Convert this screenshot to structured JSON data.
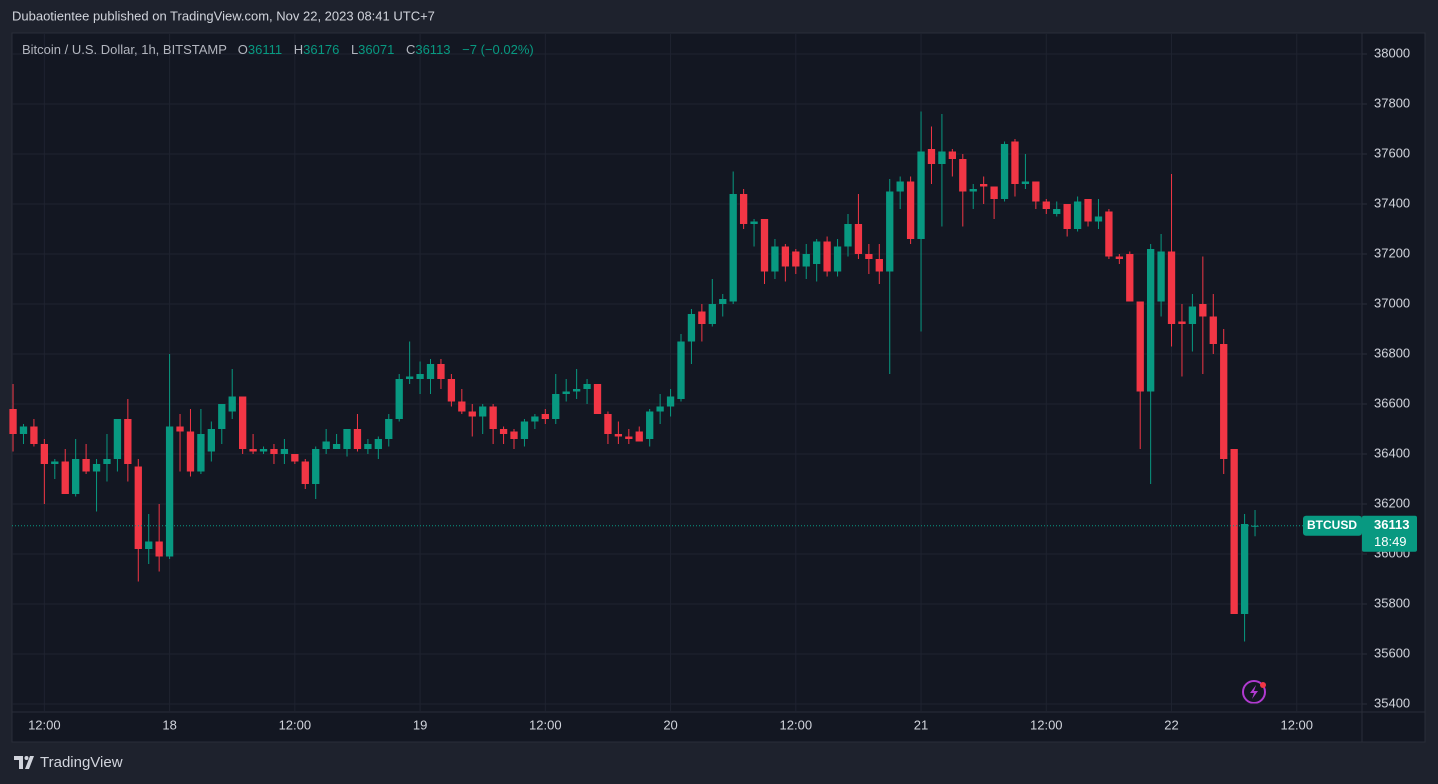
{
  "header": {
    "published": "Dubaotientee published on TradingView.com, Nov 22, 2023 08:41 UTC+7"
  },
  "footer": {
    "brand": "TradingView"
  },
  "chart_data": {
    "type": "candlestick",
    "title": "Bitcoin / U.S. Dollar, 1h, BITSTAMP",
    "ohlc_labels": [
      "O",
      "H",
      "L",
      "C"
    ],
    "change": "−7 (−0.02%)",
    "symbol": "BTCUSD",
    "countdown": "18:49",
    "up_color": "#089981",
    "down_color": "#f23645",
    "grid": true,
    "ylim": [
      35368,
      38080
    ],
    "yticks": [
      35400,
      35600,
      35800,
      36000,
      36200,
      36400,
      36600,
      36800,
      37000,
      37200,
      37400,
      37600,
      37800,
      38000
    ],
    "xlim": [
      -0.1,
      129.25
    ],
    "xticks": [
      {
        "value": 3,
        "label": "12:00"
      },
      {
        "value": 15,
        "label": "18"
      },
      {
        "value": 27,
        "label": "12:00"
      },
      {
        "value": 39,
        "label": "19"
      },
      {
        "value": 51,
        "label": "12:00"
      },
      {
        "value": 63,
        "label": "20"
      },
      {
        "value": 75,
        "label": "12:00"
      },
      {
        "value": 87,
        "label": "21"
      },
      {
        "value": 99,
        "label": "12:00"
      },
      {
        "value": 111,
        "label": "22"
      },
      {
        "value": 123,
        "label": "12:00"
      }
    ],
    "open": [
      36580,
      36480,
      36510,
      36440,
      36360,
      36370,
      36240,
      36380,
      36330,
      36360,
      36380,
      36540,
      36350,
      36020,
      36050,
      35990,
      36510,
      36490,
      36330,
      36410,
      36500,
      36570,
      36630,
      36420,
      36410,
      36420,
      36400,
      36400,
      36370,
      36280,
      36420,
      36420,
      36420,
      36500,
      36420,
      36420,
      36460,
      36540,
      36700,
      36700,
      36700,
      36760,
      36700,
      36610,
      36570,
      36550,
      36590,
      36500,
      36490,
      36460,
      36530,
      36560,
      36540,
      36640,
      36650,
      36660,
      36680,
      36560,
      36480,
      36470,
      36490,
      36460,
      36570,
      36590,
      36620,
      36850,
      36970,
      36920,
      37000,
      37010,
      37440,
      37320,
      37340,
      37130,
      37230,
      37210,
      37150,
      37160,
      37250,
      37130,
      37230,
      37320,
      37200,
      37180,
      37130,
      37450,
      37490,
      37260,
      37620,
      37560,
      37610,
      37580,
      37450,
      37480,
      37470,
      37420,
      37650,
      37480,
      37490,
      37410,
      37360,
      37400,
      37300,
      37420,
      37330,
      37370,
      37190,
      37200,
      37010,
      36650,
      37010,
      37210,
      36930,
      36920,
      37000,
      36950,
      36840,
      36420,
      35760,
      36111
    ],
    "high": [
      36680,
      36520,
      36540,
      36460,
      36380,
      36420,
      36460,
      36440,
      36380,
      36480,
      36540,
      36620,
      36380,
      36160,
      36200,
      36800,
      36560,
      36580,
      36580,
      36530,
      36600,
      36740,
      36630,
      36480,
      36430,
      36440,
      36460,
      36400,
      36380,
      36430,
      36500,
      36480,
      36500,
      36560,
      36460,
      36470,
      36560,
      36720,
      36850,
      36770,
      36780,
      36780,
      36720,
      36660,
      36600,
      36600,
      36600,
      36510,
      36500,
      36540,
      36560,
      36580,
      36720,
      36700,
      36740,
      36700,
      36680,
      36570,
      36530,
      36500,
      36510,
      36580,
      36640,
      36660,
      36880,
      36980,
      37000,
      37100,
      37040,
      37530,
      37460,
      37340,
      37340,
      37260,
      37240,
      37220,
      37240,
      37260,
      37270,
      37260,
      37360,
      37440,
      37240,
      37240,
      37500,
      37510,
      37510,
      37770,
      37710,
      37760,
      37620,
      37600,
      37480,
      37510,
      37470,
      37650,
      37660,
      37600,
      37490,
      37420,
      37410,
      37400,
      37430,
      37420,
      37420,
      37380,
      37200,
      37210,
      37010,
      37240,
      37280,
      37520,
      37000,
      37040,
      37190,
      37040,
      36900,
      36420,
      36160,
      36176
    ],
    "low": [
      36410,
      36440,
      36430,
      36200,
      36300,
      36240,
      36230,
      36320,
      36170,
      36290,
      36330,
      36290,
      35890,
      35960,
      35930,
      35980,
      36330,
      36310,
      36320,
      36370,
      36440,
      36540,
      36400,
      36400,
      36400,
      36360,
      36360,
      36360,
      36260,
      36220,
      36400,
      36420,
      36390,
      36410,
      36400,
      36380,
      36430,
      36530,
      36680,
      36640,
      36640,
      36660,
      36590,
      36560,
      36470,
      36480,
      36440,
      36440,
      36420,
      36430,
      36500,
      36520,
      36520,
      36610,
      36620,
      36600,
      36560,
      36440,
      36440,
      36440,
      36450,
      36430,
      36520,
      36550,
      36610,
      36760,
      36850,
      36910,
      36950,
      37000,
      37300,
      37230,
      37080,
      37100,
      37090,
      37120,
      37100,
      37090,
      37110,
      37110,
      37190,
      37180,
      37120,
      37080,
      36720,
      37380,
      37240,
      36890,
      37480,
      37310,
      37510,
      37310,
      37380,
      37400,
      37340,
      37410,
      37430,
      37460,
      37380,
      37360,
      37350,
      37270,
      37290,
      37310,
      37300,
      37180,
      37160,
      37010,
      36420,
      36280,
      36950,
      36830,
      36710,
      36810,
      36720,
      36800,
      36320,
      35760,
      35650,
      36071
    ],
    "close": [
      36480,
      36510,
      36440,
      36360,
      36370,
      36240,
      36380,
      36330,
      36360,
      36380,
      36540,
      36360,
      36020,
      36050,
      35990,
      36510,
      36490,
      36330,
      36480,
      36500,
      36600,
      36630,
      36420,
      36410,
      36420,
      36400,
      36420,
      36370,
      36280,
      36420,
      36450,
      36440,
      36500,
      36420,
      36440,
      36460,
      36540,
      36700,
      36710,
      36720,
      36760,
      36700,
      36610,
      36570,
      36550,
      36590,
      36500,
      36480,
      36460,
      36530,
      36550,
      36540,
      36640,
      36650,
      36660,
      36680,
      36560,
      36480,
      36470,
      36460,
      36450,
      36570,
      36590,
      36630,
      36850,
      36960,
      36920,
      37000,
      37020,
      37440,
      37320,
      37330,
      37130,
      37230,
      37150,
      37150,
      37200,
      37250,
      37130,
      37230,
      37320,
      37200,
      37180,
      37130,
      37450,
      37490,
      37260,
      37610,
      37560,
      37610,
      37580,
      37450,
      37460,
      37470,
      37420,
      37640,
      37480,
      37490,
      37410,
      37380,
      37380,
      37300,
      37410,
      37330,
      37350,
      37190,
      37180,
      37010,
      36650,
      37220,
      37210,
      36920,
      36920,
      36990,
      36950,
      36840,
      36380,
      35760,
      36120,
      36113
    ]
  }
}
